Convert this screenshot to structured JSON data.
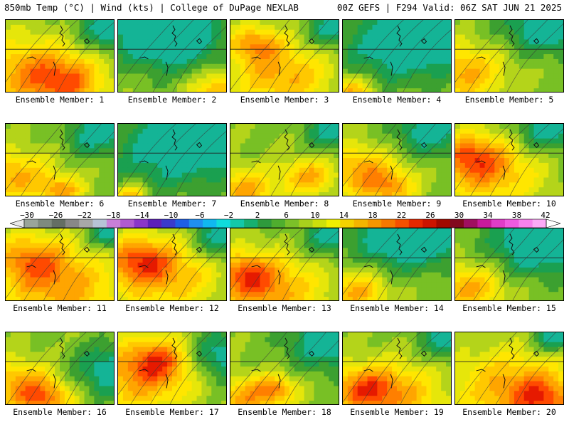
{
  "header": {
    "left": "850mb Temp (°C) | Wind (kts) | College of DuPage NEXLAB",
    "right": "00Z GEFS | F294 Valid: 06Z SAT JUN 21 2025"
  },
  "panels": [
    {
      "label": "Ensemble Member: 1",
      "hot": [
        [
          0.2,
          0.7,
          0.5
        ],
        [
          0.55,
          0.85,
          0.35
        ]
      ],
      "cool": [
        [
          0.95,
          0.1,
          0.3
        ]
      ]
    },
    {
      "label": "Ensemble Member: 2",
      "hot": [
        [
          0.9,
          0.95,
          0.25
        ]
      ],
      "cool": [
        [
          0.5,
          0.2,
          0.5
        ],
        [
          0.3,
          0.1,
          0.35
        ]
      ]
    },
    {
      "label": "Ensemble Member: 3",
      "hot": [
        [
          0.45,
          0.75,
          0.45
        ],
        [
          0.2,
          0.3,
          0.25
        ]
      ],
      "cool": [
        [
          0.95,
          0.1,
          0.25
        ]
      ]
    },
    {
      "label": "Ensemble Member: 4",
      "hot": [
        [
          0.05,
          0.95,
          0.2
        ]
      ],
      "cool": [
        [
          0.5,
          0.3,
          0.55
        ],
        [
          0.9,
          0.2,
          0.35
        ]
      ]
    },
    {
      "label": "Ensemble Member: 5",
      "hot": [
        [
          0.05,
          0.7,
          0.4
        ]
      ],
      "cool": [
        [
          0.8,
          0.05,
          0.4
        ],
        [
          0.95,
          0.0,
          0.2
        ]
      ]
    },
    {
      "label": "Ensemble Member: 6",
      "hot": [
        [
          0.05,
          0.7,
          0.35
        ],
        [
          0.5,
          0.9,
          0.2
        ]
      ],
      "cool": [
        [
          0.85,
          0.1,
          0.3
        ]
      ]
    },
    {
      "label": "Ensemble Member: 7",
      "hot": [
        [
          0.1,
          0.95,
          0.15
        ]
      ],
      "cool": [
        [
          0.5,
          0.3,
          0.6
        ],
        [
          0.9,
          0.2,
          0.3
        ]
      ]
    },
    {
      "label": "Ensemble Member: 8",
      "hot": [
        [
          0.1,
          0.9,
          0.3
        ],
        [
          0.7,
          0.7,
          0.25
        ]
      ],
      "cool": [
        [
          0.95,
          0.05,
          0.25
        ]
      ]
    },
    {
      "label": "Ensemble Member: 9",
      "hot": [
        [
          0.1,
          0.6,
          0.35
        ],
        [
          0.4,
          0.85,
          0.25
        ]
      ],
      "cool": [
        [
          0.8,
          0.05,
          0.35
        ]
      ]
    },
    {
      "label": "Ensemble Member: 10",
      "hot": [
        [
          0.3,
          0.65,
          0.45
        ],
        [
          0.1,
          0.4,
          0.3
        ]
      ],
      "cool": [
        [
          0.85,
          0.05,
          0.3
        ]
      ]
    },
    {
      "label": "Ensemble Member: 11",
      "hot": [
        [
          0.5,
          0.8,
          0.55
        ],
        [
          0.2,
          0.4,
          0.35
        ]
      ],
      "cool": [
        [
          0.95,
          0.05,
          0.2
        ]
      ]
    },
    {
      "label": "Ensemble Member: 12",
      "hot": [
        [
          0.4,
          0.6,
          0.5
        ],
        [
          0.15,
          0.4,
          0.3
        ]
      ],
      "cool": [
        [
          0.95,
          0.1,
          0.3
        ]
      ]
    },
    {
      "label": "Ensemble Member: 13",
      "hot": [
        [
          0.35,
          0.85,
          0.5
        ],
        [
          0.1,
          0.6,
          0.3
        ]
      ],
      "cool": [
        [
          0.95,
          0.05,
          0.3
        ]
      ]
    },
    {
      "label": "Ensemble Member: 14",
      "hot": [
        [
          0.1,
          0.85,
          0.3
        ]
      ],
      "cool": [
        [
          0.5,
          0.05,
          0.5
        ],
        [
          0.75,
          0.0,
          0.35
        ]
      ]
    },
    {
      "label": "Ensemble Member: 15",
      "hot": [
        [
          0.1,
          0.8,
          0.35
        ]
      ],
      "cool": [
        [
          0.7,
          0.2,
          0.45
        ],
        [
          0.9,
          0.05,
          0.3
        ]
      ]
    },
    {
      "label": "Ensemble Member: 16",
      "hot": [
        [
          0.1,
          0.7,
          0.35
        ],
        [
          0.35,
          0.9,
          0.25
        ]
      ],
      "cool": [
        [
          0.95,
          0.5,
          0.35
        ]
      ]
    },
    {
      "label": "Ensemble Member: 17",
      "hot": [
        [
          0.2,
          0.6,
          0.5
        ],
        [
          0.35,
          0.35,
          0.3
        ]
      ],
      "cool": [
        [
          0.95,
          0.3,
          0.35
        ]
      ]
    },
    {
      "label": "Ensemble Member: 18",
      "hot": [
        [
          0.1,
          0.9,
          0.3
        ],
        [
          0.4,
          0.75,
          0.2
        ]
      ],
      "cool": [
        [
          0.9,
          0.1,
          0.4
        ],
        [
          1.0,
          0.0,
          0.2
        ]
      ]
    },
    {
      "label": "Ensemble Member: 19",
      "hot": [
        [
          0.45,
          0.85,
          0.45
        ],
        [
          0.15,
          0.75,
          0.3
        ]
      ],
      "cool": [
        [
          0.95,
          0.05,
          0.25
        ]
      ]
    },
    {
      "label": "Ensemble Member: 20",
      "hot": [
        [
          0.5,
          0.75,
          0.55
        ],
        [
          0.8,
          0.9,
          0.3
        ]
      ],
      "cool": [
        [
          0.9,
          0.05,
          0.2
        ]
      ]
    }
  ],
  "colorbar": {
    "ticks": [
      "−30",
      "−26",
      "−22",
      "−18",
      "−14",
      "−10",
      "−6",
      "−2",
      "2",
      "6",
      "10",
      "14",
      "18",
      "22",
      "26",
      "30",
      "34",
      "38",
      "42"
    ],
    "colors": [
      "#9aa59a",
      "#7e8a7e",
      "#646e64",
      "#888888",
      "#a8a8a8",
      "#b7c3d6",
      "#c87fd8",
      "#b05ad0",
      "#8a35c8",
      "#5c20b8",
      "#3a3acc",
      "#1e5fe6",
      "#1f8ff0",
      "#10b8f0",
      "#10dcdc",
      "#12c8a8",
      "#16b070",
      "#2e9a3c",
      "#4fae2e",
      "#7cc028",
      "#a8d01c",
      "#cce00c",
      "#f0f000",
      "#f5d200",
      "#f5b400",
      "#f59600",
      "#f57800",
      "#f55000",
      "#e62800",
      "#cc1400",
      "#a00a00",
      "#820a1e",
      "#a01060",
      "#c81a9c",
      "#e03cc8",
      "#f05ae0",
      "#f882ee",
      "#fcaaf6"
    ]
  },
  "temp_colors": [
    "#14b496",
    "#1aa050",
    "#3ca030",
    "#78c025",
    "#b4d41a",
    "#e6e60a",
    "#ffe600",
    "#ffc800",
    "#ffa500",
    "#ff7f00",
    "#ff4a00",
    "#e61a00",
    "#c00a00",
    "#901030"
  ]
}
